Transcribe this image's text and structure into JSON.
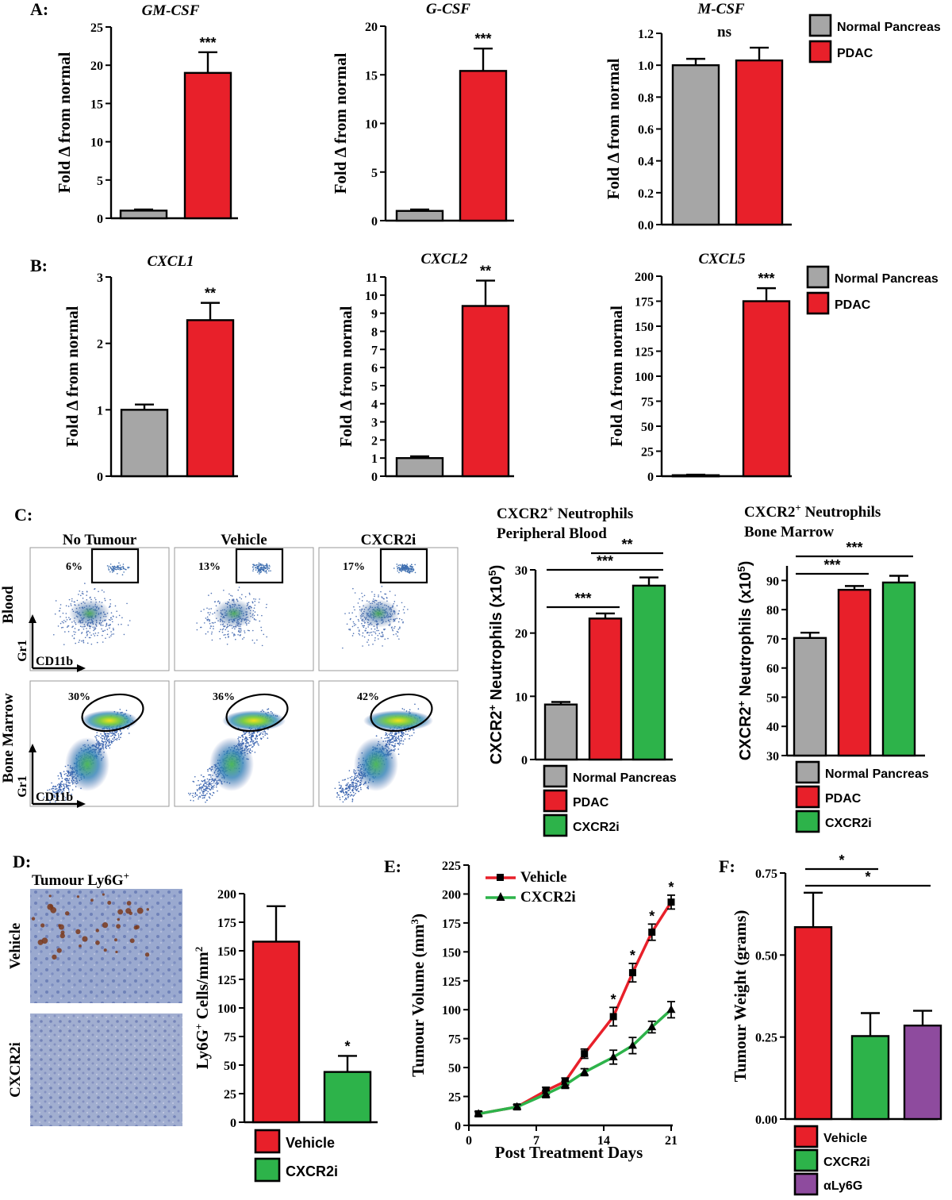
{
  "colors": {
    "normal": "#a6a6a6",
    "pdac": "#e8202a",
    "cxcr2i": "#2db34a",
    "aly6g": "#8e4b9e",
    "axis": "#000000"
  },
  "legends": {
    "ab": [
      "Normal Pancreas",
      "PDAC"
    ],
    "c": [
      "Normal Pancreas",
      "PDAC",
      "CXCR2i"
    ],
    "d": [
      "Vehicle",
      "CXCR2i"
    ],
    "e": [
      "Vehicle",
      "CXCR2i"
    ],
    "f": [
      "Vehicle",
      "CXCR2i",
      "αLy6G"
    ]
  },
  "flow": {
    "col_labels": [
      "No Tumour",
      "Vehicle",
      "CXCR2i"
    ],
    "row_labels": [
      "Blood",
      "Bone Marrow"
    ],
    "axis_y": "Gr1",
    "axis_x": "CD11b",
    "blood_pct": [
      "6%",
      "13%",
      "17%"
    ],
    "marrow_pct": [
      "30%",
      "36%",
      "42%"
    ]
  },
  "histology": {
    "title": "Tumour Ly6G",
    "title_sup": "+",
    "row_labels": [
      "Vehicle",
      "CXCR2i"
    ]
  },
  "chart_data": [
    {
      "id": "A1",
      "panel": "A:",
      "type": "bar",
      "title": "GM-CSF",
      "ylabel": "Fold Δ from normal",
      "ylim": [
        0,
        25
      ],
      "yticks": [
        0,
        5,
        10,
        15,
        20,
        25
      ],
      "categories": [
        "Normal Pancreas",
        "PDAC"
      ],
      "values": [
        1,
        19
      ],
      "errors": [
        0.15,
        2.7
      ],
      "significance": [
        "***"
      ]
    },
    {
      "id": "A2",
      "type": "bar",
      "title": "G-CSF",
      "ylabel": "Fold Δ from normal",
      "ylim": [
        0,
        20
      ],
      "yticks": [
        0,
        5,
        10,
        15,
        20
      ],
      "categories": [
        "Normal Pancreas",
        "PDAC"
      ],
      "values": [
        1,
        15.4
      ],
      "errors": [
        0.15,
        2.3
      ],
      "significance": [
        "***"
      ]
    },
    {
      "id": "A3",
      "type": "bar",
      "title": "M-CSF",
      "ylabel": "Fold Δ from normal",
      "ylim": [
        0,
        1.2
      ],
      "yticks": [
        "0.0",
        "0.2",
        "0.4",
        "0.6",
        "0.8",
        "1.0",
        "1.2"
      ],
      "categories": [
        "Normal Pancreas",
        "PDAC"
      ],
      "values": [
        1.0,
        1.03
      ],
      "errors": [
        0.04,
        0.08
      ],
      "significance": [
        "ns"
      ]
    },
    {
      "id": "B1",
      "panel": "B:",
      "type": "bar",
      "title": "CXCL1",
      "ylabel": "Fold Δ from normal",
      "ylim": [
        0,
        3
      ],
      "yticks": [
        0,
        1,
        2,
        3
      ],
      "categories": [
        "Normal Pancreas",
        "PDAC"
      ],
      "values": [
        1.0,
        2.35
      ],
      "errors": [
        0.08,
        0.26
      ],
      "significance": [
        "**"
      ]
    },
    {
      "id": "B2",
      "type": "bar",
      "title": "CXCL2",
      "ylabel": "Fold Δ from normal",
      "ylim": [
        0,
        11
      ],
      "yticks": [
        0,
        1,
        2,
        3,
        4,
        5,
        6,
        7,
        8,
        9,
        10,
        11
      ],
      "categories": [
        "Normal Pancreas",
        "PDAC"
      ],
      "values": [
        1.0,
        9.4
      ],
      "errors": [
        0.1,
        1.4
      ],
      "significance": [
        "**"
      ]
    },
    {
      "id": "B3",
      "type": "bar",
      "title": "CXCL5",
      "ylabel": "Fold Δ from normal",
      "ylim": [
        0,
        200
      ],
      "yticks": [
        0,
        25,
        50,
        75,
        100,
        125,
        150,
        175,
        200
      ],
      "categories": [
        "Normal Pancreas",
        "PDAC"
      ],
      "values": [
        1,
        175
      ],
      "errors": [
        0.5,
        13
      ],
      "significance": [
        "***"
      ]
    },
    {
      "id": "C1",
      "panel": "C:",
      "type": "bar",
      "title_lines": [
        "CXCR2",
        "Neutrophils",
        "Peripheral Blood"
      ],
      "title_sup": "+",
      "ylabel": "CXCR2",
      "ylabel_sup": "+",
      "ylabel_rest": " Neutrophils (x10",
      "ylabel_exp": "5",
      "ylabel_end": ")",
      "ylim": [
        0,
        30
      ],
      "yticks": [
        0,
        10,
        20,
        30
      ],
      "categories": [
        "Normal Pancreas",
        "PDAC",
        "CXCR2i"
      ],
      "values": [
        8.7,
        22.3,
        27.5
      ],
      "errors": [
        0.4,
        0.8,
        1.3
      ],
      "brackets": [
        {
          "from": 0,
          "to": 1,
          "label": "***"
        },
        {
          "from": 0,
          "to": 2,
          "label": "***"
        },
        {
          "from": 1,
          "to": 2,
          "label": "**"
        }
      ]
    },
    {
      "id": "C2",
      "type": "bar",
      "title_lines": [
        "CXCR2",
        "Neutrophils",
        "Bone Marrow"
      ],
      "title_sup": "+",
      "ylabel": "CXCR2",
      "ylabel_sup": "+",
      "ylabel_rest": " Neutrophils (x10",
      "ylabel_exp": "5",
      "ylabel_end": ")",
      "ylim": [
        30,
        95
      ],
      "yticks": [
        30,
        40,
        50,
        60,
        70,
        80,
        90
      ],
      "categories": [
        "Normal Pancreas",
        "PDAC",
        "CXCR2i"
      ],
      "values": [
        70.3,
        86.8,
        89.3
      ],
      "errors": [
        1.8,
        1.3,
        2.3
      ],
      "brackets": [
        {
          "from": 0,
          "to": 1,
          "label": "***"
        },
        {
          "from": 0,
          "to": 2,
          "label": "***"
        }
      ]
    },
    {
      "id": "D",
      "panel": "D:",
      "type": "bar",
      "ylabel": "Ly6G",
      "ylabel_sup": "+",
      "ylabel_rest": " Cells/mm",
      "ylabel_exp": "2",
      "ylim": [
        0,
        200
      ],
      "yticks": [
        0,
        25,
        50,
        75,
        100,
        125,
        150,
        175,
        200
      ],
      "categories": [
        "Vehicle",
        "CXCR2i"
      ],
      "values": [
        158,
        44
      ],
      "errors": [
        31,
        14
      ],
      "significance": [
        "*"
      ]
    },
    {
      "id": "E",
      "panel": "E:",
      "type": "line",
      "xlabel": "Post Treatment Days",
      "ylabel": "Tumour Volume (mm",
      "ylabel_exp": "3",
      "ylabel_end": ")",
      "xlim": [
        0,
        21
      ],
      "xticks": [
        0,
        7,
        14,
        21
      ],
      "ylim": [
        0,
        225
      ],
      "yticks": [
        0,
        25,
        50,
        75,
        100,
        125,
        150,
        175,
        200,
        225
      ],
      "x": [
        1,
        5,
        8,
        10,
        12,
        15,
        17,
        19,
        21
      ],
      "series": [
        {
          "name": "Vehicle",
          "values": [
            10,
            16,
            30,
            38,
            62,
            94,
            132,
            167,
            193
          ],
          "errors": [
            2,
            2,
            3,
            3,
            4,
            8,
            8,
            7,
            6
          ],
          "marker": "square"
        },
        {
          "name": "CXCR2i",
          "values": [
            10,
            16,
            27,
            35,
            46,
            59,
            69,
            85,
            100
          ],
          "errors": [
            2,
            2,
            3,
            3,
            3,
            6,
            7,
            5,
            7
          ],
          "marker": "triangle"
        }
      ],
      "significance_at": [
        15,
        17,
        19,
        21
      ],
      "significance": [
        "*",
        "*",
        "*",
        "*"
      ]
    },
    {
      "id": "F",
      "panel": "F:",
      "type": "bar",
      "ylabel": "Tumour Weight (grams)",
      "ylim": [
        0,
        0.75
      ],
      "yticks": [
        "0.00",
        "0.25",
        "0.50",
        "0.75"
      ],
      "categories": [
        "Vehicle",
        "CXCR2i",
        "αLy6G"
      ],
      "values": [
        0.585,
        0.253,
        0.285
      ],
      "errors": [
        0.105,
        0.07,
        0.045
      ],
      "brackets": [
        {
          "from": 0,
          "to": 1,
          "label": "*"
        },
        {
          "from": 0,
          "to": 2,
          "label": "*"
        }
      ]
    }
  ]
}
